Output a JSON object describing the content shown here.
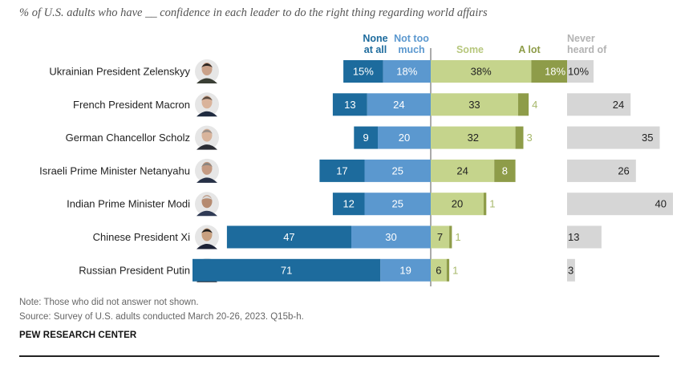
{
  "title": "% of U.S. adults who have __ confidence in each leader to do the right thing regarding world affairs",
  "note": "Note: Those who did not answer not shown.",
  "source": "Source: Survey of U.S. adults conducted March 20-26, 2023. Q15b-h.",
  "org": "PEW RESEARCH CENTER",
  "colors": {
    "none_at_all": "#1d6b9d",
    "not_too_much": "#5b98cf",
    "some": "#c5d48c",
    "a_lot": "#8e9c49",
    "never_heard": "#d6d6d6",
    "none_label": "#1d6b9d",
    "nottoo_label": "#5b98cf",
    "some_label": "#b7c77d",
    "alot_label": "#8e9c49",
    "never_label": "#b3b3b3",
    "small_outside_label": "#a7b86b"
  },
  "chart_data": {
    "type": "bar",
    "subtype": "diverging-stacked",
    "legend": [
      {
        "key": "none_at_all",
        "label_lines": [
          "None",
          "at all"
        ]
      },
      {
        "key": "not_too_much",
        "label_lines": [
          "Not too",
          "much"
        ]
      },
      {
        "key": "some",
        "label_lines": [
          "Some"
        ]
      },
      {
        "key": "a_lot",
        "label_lines": [
          "A lot"
        ]
      },
      {
        "key": "never_heard",
        "label_lines": [
          "Never",
          "heard of"
        ]
      }
    ],
    "categories": [
      "Ukrainian President Zelenskyy",
      "French President Macron",
      "German Chancellor Scholz",
      "Israeli Prime Minister Netanyahu",
      "Indian Prime Minister Modi",
      "Chinese President Xi",
      "Russian President Putin"
    ],
    "series": [
      {
        "name": "None at all",
        "key": "none_at_all",
        "values": [
          15,
          13,
          9,
          17,
          12,
          47,
          71
        ],
        "labels": [
          "15%",
          "13",
          "9",
          "17",
          "12",
          "47",
          "71"
        ]
      },
      {
        "name": "Not too much",
        "key": "not_too_much",
        "values": [
          18,
          24,
          20,
          25,
          25,
          30,
          19
        ],
        "labels": [
          "18%",
          "24",
          "20",
          "25",
          "25",
          "30",
          "19"
        ]
      },
      {
        "name": "Some",
        "key": "some",
        "values": [
          38,
          33,
          32,
          24,
          20,
          7,
          6
        ],
        "labels": [
          "38%",
          "33",
          "32",
          "24",
          "20",
          "7",
          "6"
        ]
      },
      {
        "name": "A lot",
        "key": "a_lot",
        "values": [
          18,
          4,
          3,
          8,
          1,
          1,
          1
        ],
        "labels": [
          "18%",
          "4",
          "3",
          "8",
          "1",
          "1",
          "1"
        ]
      },
      {
        "name": "Never heard of",
        "key": "never_heard",
        "values": [
          10,
          24,
          35,
          26,
          40,
          13,
          3
        ],
        "labels": [
          "10%",
          "24",
          "35",
          "26",
          "40",
          "13",
          "3"
        ]
      }
    ]
  }
}
